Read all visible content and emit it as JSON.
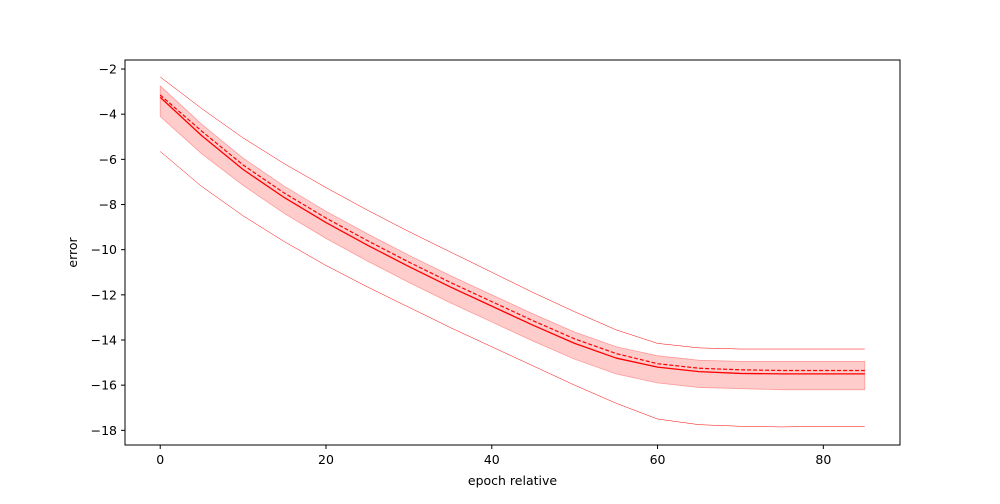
{
  "chart_data": {
    "type": "line",
    "title": "",
    "xlabel": "epoch relative",
    "ylabel": "error",
    "xlim": [
      -4.25,
      89.25
    ],
    "ylim": [
      -18.65,
      -1.6
    ],
    "xticks": [
      0,
      20,
      40,
      60,
      80
    ],
    "yticks": [
      -2,
      -4,
      -6,
      -8,
      -10,
      -12,
      -14,
      -16,
      -18
    ],
    "xtick_labels": [
      "0",
      "20",
      "40",
      "60",
      "80"
    ],
    "ytick_labels": [
      "−2",
      "−4",
      "−6",
      "−8",
      "−10",
      "−12",
      "−14",
      "−16",
      "−18"
    ],
    "grid": false,
    "legend": "none",
    "colors": {
      "line": "#ff0000",
      "band": "#ff9999"
    },
    "x": [
      0,
      5,
      10,
      15,
      20,
      25,
      30,
      35,
      40,
      45,
      50,
      55,
      60,
      65,
      70,
      75,
      80,
      85
    ],
    "series": [
      {
        "role": "mean",
        "style": "solid",
        "values": [
          -3.25,
          -4.95,
          -6.45,
          -7.7,
          -8.8,
          -9.8,
          -10.75,
          -11.65,
          -12.5,
          -13.35,
          -14.15,
          -14.8,
          -15.2,
          -15.4,
          -15.48,
          -15.5,
          -15.5,
          -15.5
        ]
      },
      {
        "role": "median",
        "style": "dashed",
        "values": [
          -3.15,
          -4.75,
          -6.25,
          -7.5,
          -8.6,
          -9.6,
          -10.55,
          -11.45,
          -12.3,
          -13.15,
          -13.95,
          -14.6,
          -15.05,
          -15.25,
          -15.32,
          -15.35,
          -15.35,
          -15.35
        ]
      },
      {
        "role": "band-upper",
        "style": "fill",
        "values": [
          -2.75,
          -4.45,
          -5.95,
          -7.2,
          -8.3,
          -9.3,
          -10.25,
          -11.15,
          -12.0,
          -12.85,
          -13.65,
          -14.3,
          -14.7,
          -14.9,
          -14.95,
          -14.95,
          -14.95,
          -14.95
        ]
      },
      {
        "role": "band-lower",
        "style": "fill",
        "values": [
          -4.1,
          -5.75,
          -7.15,
          -8.4,
          -9.5,
          -10.5,
          -11.45,
          -12.35,
          -13.2,
          -14.05,
          -14.85,
          -15.5,
          -15.9,
          -16.1,
          -16.15,
          -16.2,
          -16.2,
          -16.2
        ]
      },
      {
        "role": "max",
        "style": "thin",
        "values": [
          -2.35,
          -3.75,
          -5.05,
          -6.2,
          -7.25,
          -8.25,
          -9.2,
          -10.1,
          -11.0,
          -11.9,
          -12.75,
          -13.55,
          -14.15,
          -14.35,
          -14.4,
          -14.4,
          -14.4,
          -14.4
        ]
      },
      {
        "role": "min",
        "style": "thin",
        "values": [
          -5.65,
          -7.2,
          -8.5,
          -9.65,
          -10.7,
          -11.65,
          -12.55,
          -13.45,
          -14.3,
          -15.15,
          -16.0,
          -16.8,
          -17.5,
          -17.75,
          -17.82,
          -17.85,
          -17.82,
          -17.82
        ]
      }
    ]
  }
}
